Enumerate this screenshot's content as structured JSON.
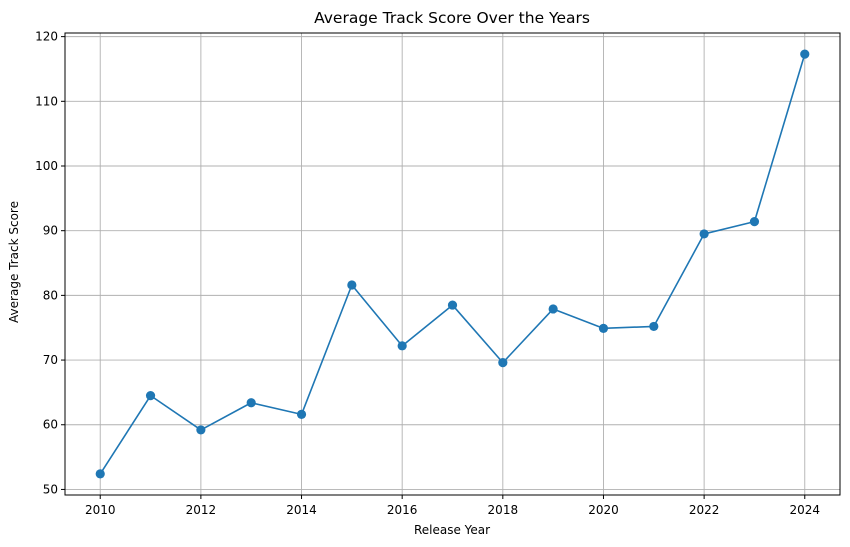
{
  "chart_data": {
    "type": "line",
    "title": "Average Track Score Over the Years",
    "xlabel": "Release Year",
    "ylabel": "Average Track Score",
    "x": [
      2010,
      2011,
      2012,
      2013,
      2014,
      2015,
      2016,
      2017,
      2018,
      2019,
      2020,
      2021,
      2022,
      2023,
      2024
    ],
    "series": [
      {
        "values": [
          52.4,
          64.5,
          59.2,
          63.4,
          61.6,
          81.6,
          72.2,
          78.5,
          69.6,
          77.9,
          74.9,
          75.2,
          89.5,
          91.4,
          117.3
        ],
        "color": "#1f77b4",
        "marker": "circle"
      }
    ],
    "xlim": [
      2009.3,
      2024.7
    ],
    "ylim": [
      49.14,
      120.56
    ],
    "xticks": [
      "2010",
      "2012",
      "2014",
      "2016",
      "2018",
      "2020",
      "2022",
      "2024"
    ],
    "yticks": [
      "50",
      "60",
      "70",
      "80",
      "90",
      "100",
      "110",
      "120"
    ],
    "grid": true
  }
}
